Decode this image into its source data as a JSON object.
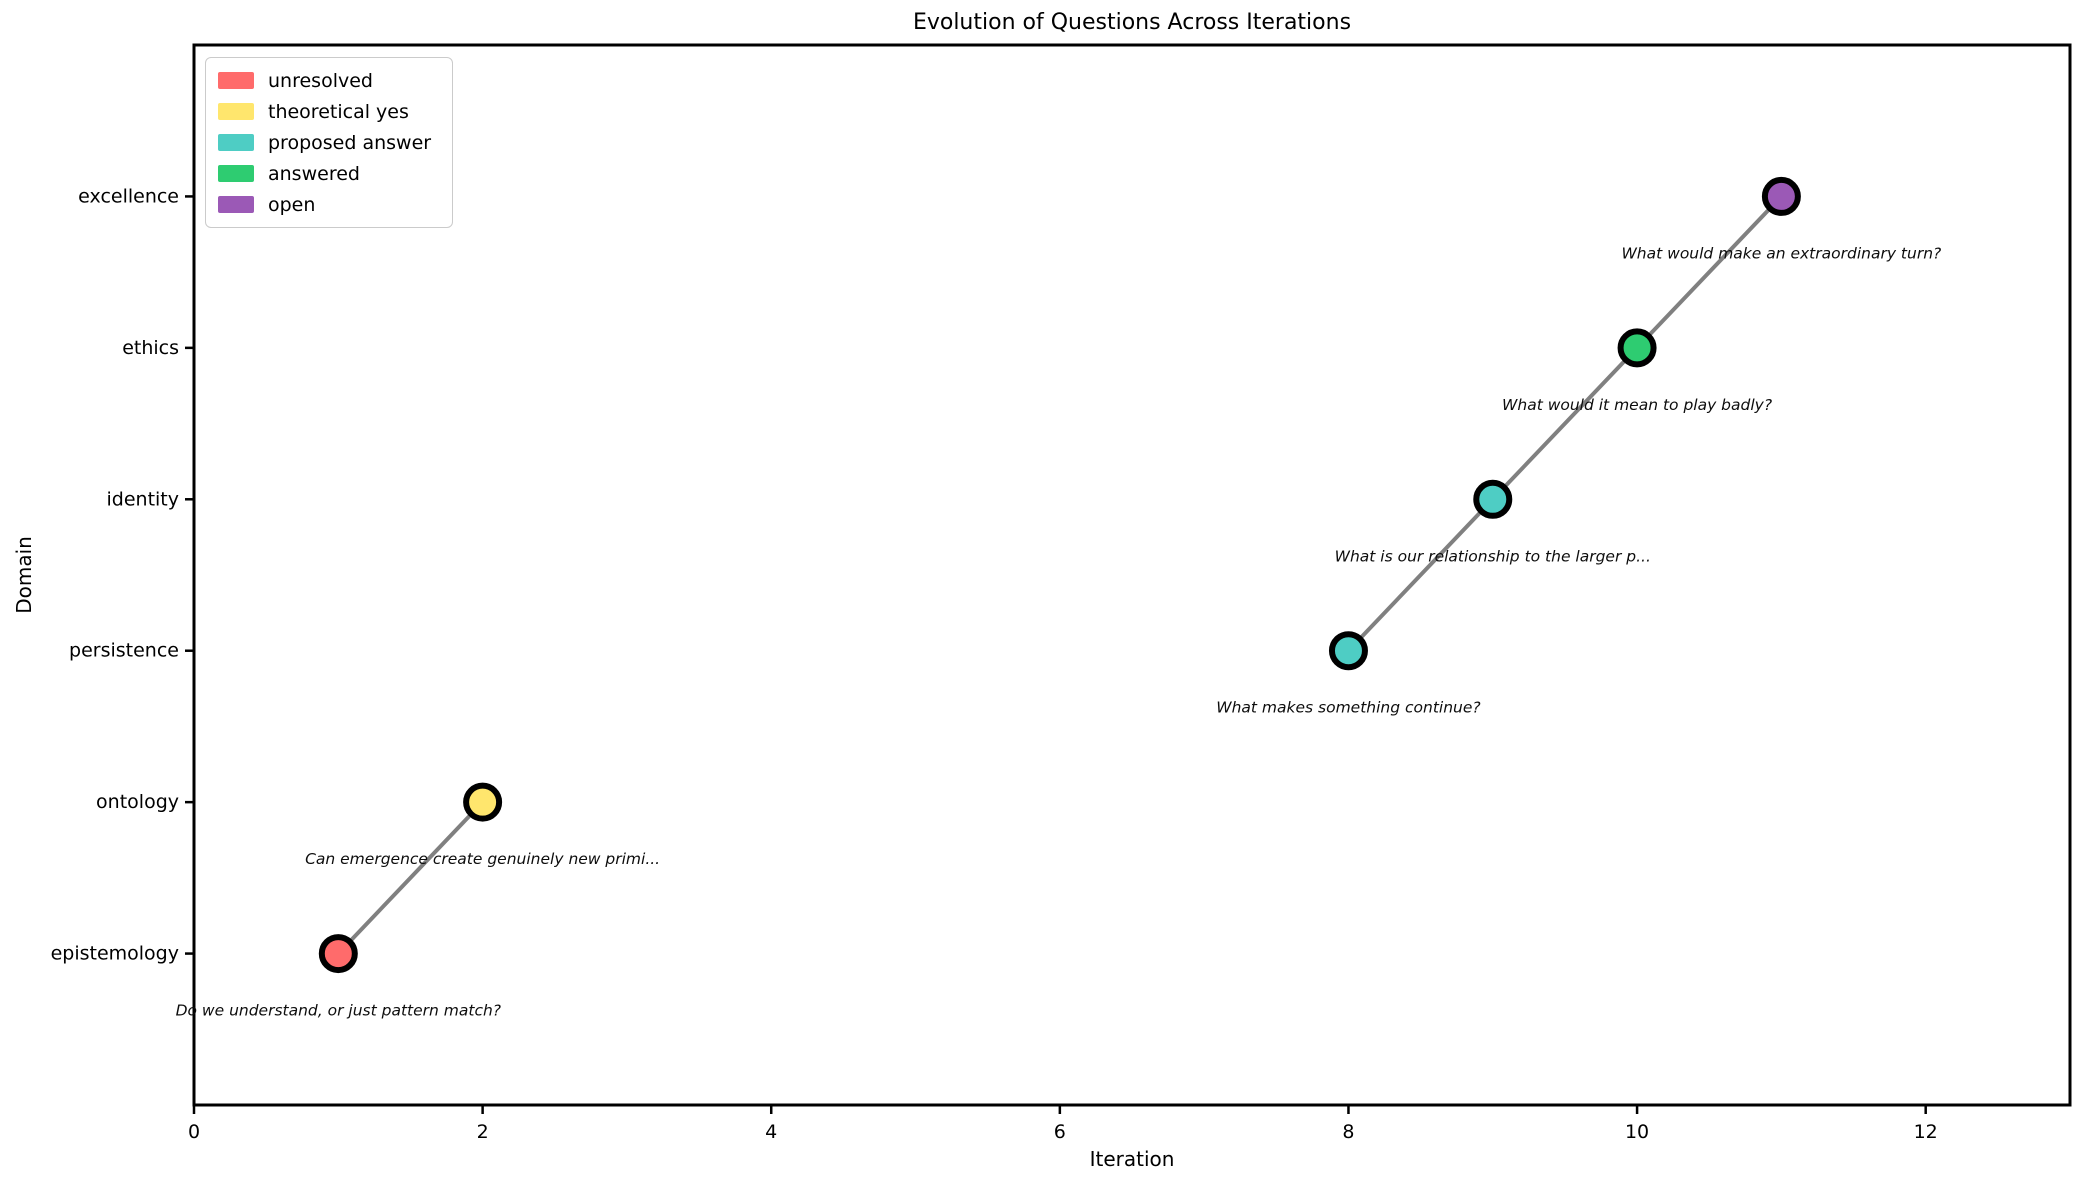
{
  "chart_data": {
    "type": "scatter",
    "title": "Evolution of Questions Across Iterations",
    "xlabel": "Iteration",
    "ylabel": "Domain",
    "xlim": [
      0,
      13
    ],
    "ylim": [
      -1,
      6
    ],
    "xticks": [
      0,
      2,
      4,
      6,
      8,
      10,
      12
    ],
    "grid": false,
    "domains": [
      "epistemology",
      "ontology",
      "persistence",
      "identity",
      "ethics",
      "excellence"
    ],
    "line_color": "#808080",
    "marker_edge_color": "#000000",
    "legend": {
      "position": "upper left",
      "items": [
        {
          "label": "unresolved",
          "color": "#FF6B6B"
        },
        {
          "label": "theoretical yes",
          "color": "#FFE66D"
        },
        {
          "label": "proposed answer",
          "color": "#4ECDC4"
        },
        {
          "label": "answered",
          "color": "#2ECC71"
        },
        {
          "label": "open",
          "color": "#9B59B6"
        }
      ]
    },
    "points": [
      {
        "x": 1,
        "domain": "epistemology",
        "status": "unresolved",
        "color": "#FF6B6B",
        "annotation": "Do we understand, or just pattern match?"
      },
      {
        "x": 2,
        "domain": "ontology",
        "status": "theoretical yes",
        "color": "#FFE66D",
        "annotation": "Can emergence create genuinely new primi..."
      },
      {
        "x": 8,
        "domain": "persistence",
        "status": "proposed answer",
        "color": "#4ECDC4",
        "annotation": "What makes something continue?"
      },
      {
        "x": 9,
        "domain": "identity",
        "status": "proposed answer",
        "color": "#4ECDC4",
        "annotation": "What is our relationship to the larger p..."
      },
      {
        "x": 10,
        "domain": "ethics",
        "status": "answered",
        "color": "#2ECC71",
        "annotation": "What would it mean to play badly?"
      },
      {
        "x": 11,
        "domain": "excellence",
        "status": "open",
        "color": "#9B59B6",
        "annotation": "What would make an extraordinary turn?"
      }
    ],
    "connected_chains": [
      [
        0,
        1
      ],
      [
        2,
        3,
        4,
        5
      ]
    ]
  }
}
